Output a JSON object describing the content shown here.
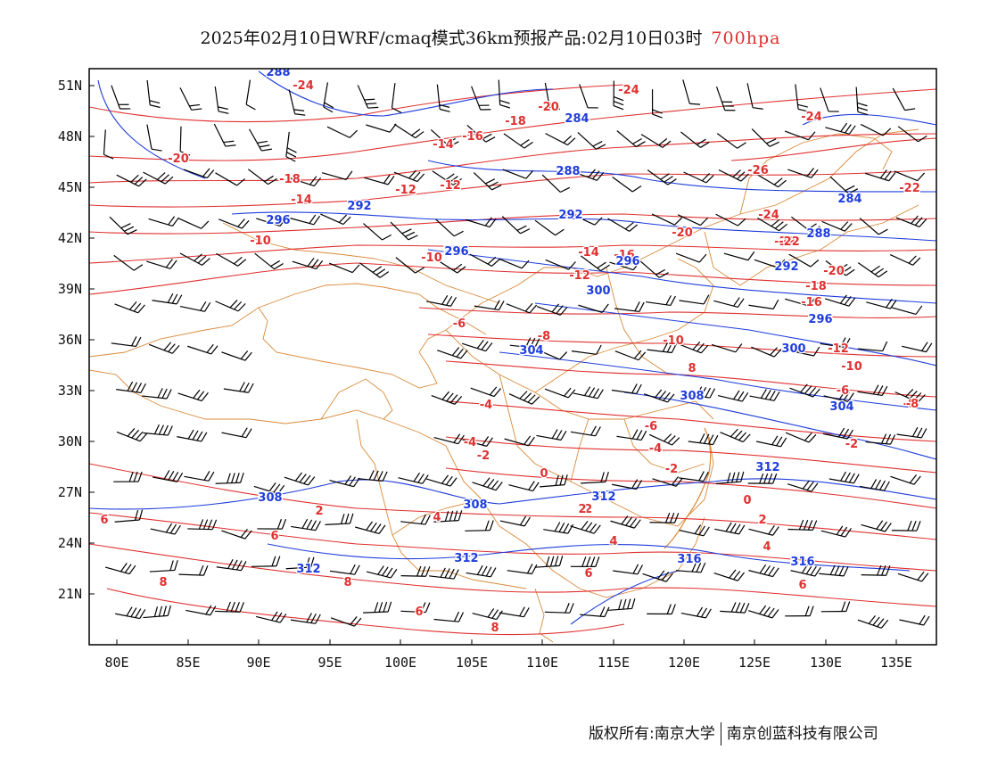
{
  "title": {
    "main": "2025年02月10日WRF/cmaq模式36km预报产品:02月10日03时",
    "level": "700hpa"
  },
  "axes": {
    "y_ticks": [
      "51N",
      "48N",
      "45N",
      "42N",
      "39N",
      "36N",
      "33N",
      "30N",
      "27N",
      "24N",
      "21N"
    ],
    "x_ticks": [
      "80E",
      "85E",
      "90E",
      "95E",
      "100E",
      "105E",
      "110E",
      "115E",
      "120E",
      "125E",
      "130E",
      "135E"
    ]
  },
  "map": {
    "lon_range": [
      78,
      138
    ],
    "lat_range": [
      18,
      52
    ],
    "colors": {
      "temperature": "#e03030",
      "geopotential": "#1e3cdc",
      "borders": "#d98a3a",
      "wind_barbs": "#000000"
    },
    "temperature_contours": [
      {
        "label": "-24"
      },
      {
        "label": "-24"
      },
      {
        "label": "-24"
      },
      {
        "label": "-22"
      },
      {
        "label": "-22"
      },
      {
        "label": "-22"
      },
      {
        "label": "-20"
      },
      {
        "label": "-20"
      },
      {
        "label": "-20"
      },
      {
        "label": "-20"
      },
      {
        "label": "-18"
      },
      {
        "label": "-18"
      },
      {
        "label": "-18"
      },
      {
        "label": "-16"
      },
      {
        "label": "-16"
      },
      {
        "label": "-16"
      },
      {
        "label": "-14"
      },
      {
        "label": "-14"
      },
      {
        "label": "-14"
      },
      {
        "label": "-12"
      },
      {
        "label": "-12"
      },
      {
        "label": "-12"
      },
      {
        "label": "-12"
      },
      {
        "label": "-10"
      },
      {
        "label": "-10"
      },
      {
        "label": "-10"
      },
      {
        "label": "-10"
      },
      {
        "label": "-8"
      },
      {
        "label": "-8"
      },
      {
        "label": "-6"
      },
      {
        "label": "-6"
      },
      {
        "label": "-6"
      },
      {
        "label": "-4"
      },
      {
        "label": "-4"
      },
      {
        "label": "-4"
      },
      {
        "label": "-2"
      },
      {
        "label": "-2"
      },
      {
        "label": "-2"
      },
      {
        "label": "-2"
      },
      {
        "label": "0"
      },
      {
        "label": "0"
      },
      {
        "label": "2"
      },
      {
        "label": "2"
      },
      {
        "label": "2"
      },
      {
        "label": "4"
      },
      {
        "label": "4"
      },
      {
        "label": "4"
      },
      {
        "label": "6"
      },
      {
        "label": "6"
      },
      {
        "label": "6"
      },
      {
        "label": "6"
      },
      {
        "label": "6"
      },
      {
        "label": "8"
      },
      {
        "label": "8"
      },
      {
        "label": "8"
      },
      {
        "label": "8"
      },
      {
        "label": "-26"
      },
      {
        "label": "-24"
      },
      {
        "label": "-8"
      }
    ],
    "geopotential_contours": [
      {
        "label": "288"
      },
      {
        "label": "284"
      },
      {
        "label": "288"
      },
      {
        "label": "288"
      },
      {
        "label": "284"
      },
      {
        "label": "292"
      },
      {
        "label": "292"
      },
      {
        "label": "296"
      },
      {
        "label": "296"
      },
      {
        "label": "292"
      },
      {
        "label": "296"
      },
      {
        "label": "296"
      },
      {
        "label": "300"
      },
      {
        "label": "300"
      },
      {
        "label": "304"
      },
      {
        "label": "304"
      },
      {
        "label": "308"
      },
      {
        "label": "308"
      },
      {
        "label": "308"
      },
      {
        "label": "312"
      },
      {
        "label": "312"
      },
      {
        "label": "312"
      },
      {
        "label": "312"
      },
      {
        "label": "316"
      },
      {
        "label": "316"
      },
      {
        "label": "296"
      }
    ]
  },
  "copyright": {
    "owner": "版权所有:南京大学",
    "partner": "南京创蓝科技有限公司"
  }
}
